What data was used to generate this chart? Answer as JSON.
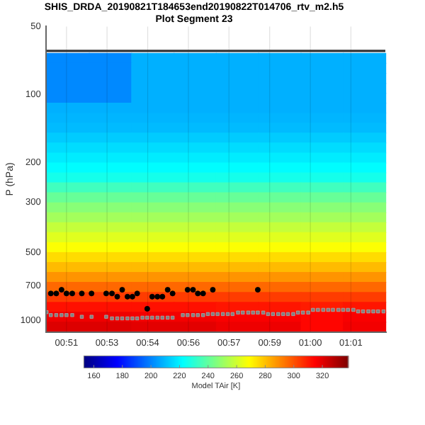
{
  "chart_data": [
    {
      "type": "heatmap",
      "clabel": "Model TAir [K]",
      "clim": [
        153,
        338
      ],
      "cticks": [
        160,
        180,
        200,
        220,
        240,
        260,
        280,
        300,
        320
      ],
      "categories": [
        null,
        null,
        null,
        null,
        null,
        null,
        null,
        null
      ],
      "y_categories": [
        null,
        null,
        null,
        null,
        null,
        null,
        null,
        null,
        null,
        null,
        null,
        null,
        null,
        null,
        null,
        null,
        null,
        null,
        null,
        null,
        null,
        null,
        null,
        null,
        null,
        null,
        null,
        null
      ],
      "cells": [
        [
          201,
          201,
          208,
          208,
          208,
          208,
          208,
          208
        ],
        [
          201,
          201,
          208,
          208,
          208,
          208,
          208,
          208
        ],
        [
          201,
          201,
          208,
          208,
          208,
          208,
          208,
          208
        ],
        [
          201,
          201,
          208,
          208,
          208,
          208,
          208,
          208
        ],
        [
          201,
          201,
          208,
          208,
          208,
          208,
          208,
          208
        ],
        [
          208,
          208,
          208,
          208,
          208,
          208,
          208,
          208
        ],
        [
          209,
          209,
          209,
          209,
          209,
          209,
          209,
          209
        ],
        [
          210,
          210,
          210,
          210,
          210,
          210,
          210,
          210
        ],
        [
          213,
          213,
          213,
          213,
          213,
          213,
          213,
          213
        ],
        [
          216,
          216,
          216,
          216,
          216,
          216,
          216,
          216
        ],
        [
          219,
          219,
          219,
          219,
          219,
          219,
          219,
          219
        ],
        [
          222,
          222,
          222,
          222,
          222,
          222,
          222,
          222
        ],
        [
          226,
          226,
          226,
          226,
          226,
          226,
          226,
          226
        ],
        [
          234,
          234,
          234,
          234,
          234,
          234,
          234,
          234
        ],
        [
          241,
          241,
          241,
          241,
          241,
          241,
          241,
          241
        ],
        [
          247,
          247,
          247,
          247,
          247,
          247,
          247,
          247
        ],
        [
          252,
          252,
          252,
          252,
          252,
          252,
          252,
          252
        ],
        [
          258,
          258,
          258,
          258,
          258,
          258,
          258,
          258
        ],
        [
          263,
          263,
          263,
          263,
          263,
          263,
          263,
          263
        ],
        [
          268,
          268,
          268,
          268,
          268,
          268,
          268,
          268
        ],
        [
          275,
          275,
          275,
          275,
          275,
          275,
          275,
          275
        ],
        [
          281,
          281,
          281,
          281,
          281,
          281,
          281,
          281
        ],
        [
          288,
          288,
          288,
          288,
          288,
          288,
          288,
          288
        ],
        [
          296,
          296,
          296,
          296,
          296,
          296,
          296,
          296
        ],
        [
          304,
          304,
          304,
          304,
          304,
          304,
          304,
          304
        ],
        [
          312,
          312,
          312,
          312,
          311,
          311,
          310,
          311
        ],
        [
          318,
          318,
          317,
          317,
          316,
          316,
          314,
          316
        ],
        [
          321,
          321,
          320,
          320,
          318,
          318,
          314,
          317
        ]
      ]
    },
    {
      "type": "scatter",
      "title": "SHIS_DRDA_20190821T184653end20190822T014706_rtv_m2.h5",
      "subtitle": "Plot Segment 23",
      "ylabel": "P (hPa)",
      "log": "y",
      "grid": "x",
      "legend": false,
      "xlim": [
        0.8396,
        1.0452
      ],
      "xticks": [
        {
          "value": 0.8517,
          "label": "00:51"
        },
        {
          "value": 0.8763,
          "label": "00:53"
        },
        {
          "value": 0.901,
          "label": "00:54"
        },
        {
          "value": 0.9257,
          "label": "00:56"
        },
        {
          "value": 0.9503,
          "label": "00:57"
        },
        {
          "value": 0.975,
          "label": "00:59"
        },
        {
          "value": 0.9997,
          "label": "01:00"
        },
        {
          "value": 1.0243,
          "label": "01:01"
        }
      ],
      "ylim": [
        1120,
        50
      ],
      "yticks": [
        50,
        100,
        200,
        300,
        500,
        700,
        1000
      ],
      "ref_lines": [
        {
          "axis": "y",
          "value": 64,
          "color": "#333333"
        }
      ],
      "series": [
        {
          "type": "scatter",
          "color": "#808080",
          "marker": "square",
          "x": [
            0.8396,
            0.8422,
            0.8455,
            0.8487,
            0.8517,
            0.8552,
            0.861,
            0.8669,
            0.8758,
            0.8793,
            0.8825,
            0.8855,
            0.8887,
            0.8917,
            0.8946,
            0.8978,
            0.9007,
            0.9037,
            0.9069,
            0.9099,
            0.9131,
            0.9161,
            0.9223,
            0.9252,
            0.9285,
            0.9314,
            0.9346,
            0.9375,
            0.9405,
            0.9434,
            0.9466,
            0.9496,
            0.9525,
            0.9558,
            0.9587,
            0.962,
            0.9649,
            0.9678,
            0.9711,
            0.974,
            0.977,
            0.9802,
            0.9832,
            0.9861,
            0.9893,
            0.9922,
            0.9952,
            0.9984,
            1.0013,
            1.0043,
            1.0075,
            1.0105,
            1.0134,
            1.0167,
            1.0196,
            1.0225,
            1.0258,
            1.0287,
            1.0317,
            1.0349,
            1.0379,
            1.0408,
            1.0441
          ],
          "values": [
            917,
            945,
            945,
            945,
            945,
            945,
            961,
            961,
            961,
            977,
            977,
            977,
            977,
            977,
            977,
            970,
            970,
            970,
            970,
            970,
            970,
            970,
            945,
            945,
            945,
            945,
            945,
            935,
            935,
            935,
            935,
            935,
            935,
            921,
            921,
            921,
            921,
            921,
            921,
            935,
            935,
            935,
            935,
            935,
            935,
            921,
            921,
            921,
            896,
            896,
            896,
            896,
            896,
            896,
            896,
            896,
            896,
            910,
            910,
            910,
            910,
            910,
            910
          ]
        },
        {
          "type": "scatter",
          "color": "#000000",
          "marker": "circle",
          "x": [
            0.8422,
            0.8455,
            0.8487,
            0.8517,
            0.8552,
            0.861,
            0.8669,
            0.8758,
            0.8793,
            0.8825,
            0.8855,
            0.8887,
            0.8917,
            0.8946,
            0.9007,
            0.9037,
            0.9069,
            0.9099,
            0.9131,
            0.9161,
            0.9252,
            0.9285,
            0.9314,
            0.9346,
            0.9405,
            0.9678
          ],
          "values": [
            758,
            758,
            730,
            758,
            758,
            758,
            758,
            758,
            758,
            783,
            730,
            783,
            783,
            758,
            886,
            783,
            783,
            783,
            730,
            758,
            730,
            730,
            758,
            758,
            730,
            730
          ]
        }
      ]
    }
  ]
}
